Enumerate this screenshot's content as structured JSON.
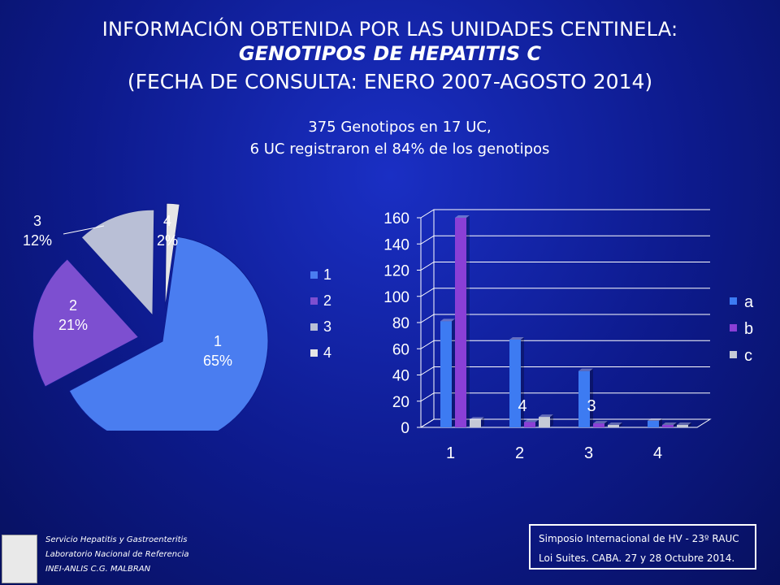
{
  "header": {
    "line1": "INFORMACIÓN OBTENIDA POR LAS UNIDADES CENTINELA:",
    "line2": "GENOTIPOS DE HEPATITIS C",
    "line3": "(FECHA DE CONSULTA: ENERO 2007-AGOSTO 2014)"
  },
  "subtitle": {
    "line1": "375 Genotipos en 17 UC,",
    "line2": "6 UC registraron el 84% de los genotipos"
  },
  "footer": {
    "left_line1": "Servicio Hepatitis y Gastroenteritis",
    "left_line2": "Laboratorio Nacional de Referencia",
    "left_line3": "INEI-ANLIS C.G. MALBRAN",
    "right_line1": "Simposio Internacional de HV - 23º RAUC",
    "right_line2": "Loi Suites. CABA.  27 y 28  Octubre 2014."
  },
  "chart_data": [
    {
      "type": "pie",
      "categories": [
        "1",
        "2",
        "3",
        "4"
      ],
      "values": [
        65,
        21,
        12,
        2
      ],
      "labels": [
        "1\n65%",
        "2\n21%",
        "3\n12%",
        "4\n2%"
      ],
      "legend": [
        "1",
        "2",
        "3",
        "4"
      ],
      "legend_position": "right",
      "colors": [
        "#4a7df0",
        "#7d4fd0",
        "#b9bfd6",
        "#e6e6e6"
      ]
    },
    {
      "type": "bar",
      "categories": [
        "1",
        "2",
        "3",
        "4"
      ],
      "series": [
        {
          "name": "a",
          "values": [
            81,
            67,
            43,
            5
          ],
          "color": "#3d7bf2"
        },
        {
          "name": "b",
          "values": [
            160,
            4,
            3,
            0
          ],
          "color": "#8a3fd6"
        },
        {
          "name": "c",
          "values": [
            6,
            8,
            0,
            1
          ],
          "color": "#c5c9d6"
        }
      ],
      "data_labels": [
        {
          "category": "2",
          "text": "4"
        },
        {
          "category": "3",
          "text": "3"
        }
      ],
      "y_ticks": [
        "0",
        "20",
        "40",
        "60",
        "80",
        "100",
        "120",
        "140",
        "160"
      ],
      "ylim": [
        0,
        160
      ],
      "legend_position": "right",
      "grid": true
    }
  ]
}
